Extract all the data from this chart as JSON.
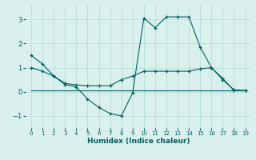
{
  "xlabel": "Humidex (Indice chaleur)",
  "bg_color": "#d9f0ed",
  "line_color": "#006060",
  "grid_color": "#b8ddd8",
  "xlim": [
    -0.5,
    19.5
  ],
  "ylim": [
    -1.5,
    3.6
  ],
  "yticks": [
    -1,
    0,
    1,
    2,
    3
  ],
  "xticks": [
    0,
    1,
    2,
    3,
    4,
    5,
    6,
    7,
    8,
    9,
    10,
    11,
    12,
    13,
    14,
    15,
    16,
    17,
    18,
    19
  ],
  "series1_x": [
    0,
    1,
    2,
    3,
    4,
    5,
    6,
    7,
    8,
    9,
    10,
    11,
    12,
    13,
    14,
    15,
    16,
    17,
    18,
    19
  ],
  "series1_y": [
    1.5,
    1.15,
    0.65,
    0.3,
    0.2,
    -0.3,
    -0.65,
    -0.9,
    -1.0,
    -0.05,
    3.05,
    2.65,
    3.1,
    3.1,
    3.1,
    1.85,
    1.0,
    0.5,
    0.08,
    0.05
  ],
  "series2_x": [
    0,
    1,
    2,
    3,
    4,
    5,
    6,
    7,
    8,
    9,
    10,
    11,
    12,
    13,
    14,
    15,
    16,
    17,
    18,
    19
  ],
  "series2_y": [
    1.0,
    0.85,
    0.65,
    0.35,
    0.28,
    0.25,
    0.25,
    0.25,
    0.5,
    0.65,
    0.85,
    0.85,
    0.85,
    0.85,
    0.85,
    0.95,
    1.0,
    0.55,
    0.05,
    0.05
  ],
  "series3_x": [
    0,
    1,
    2,
    3,
    4,
    5,
    6,
    7,
    8,
    9,
    10,
    11,
    12,
    13,
    14,
    15,
    16,
    17,
    18,
    19
  ],
  "series3_y": [
    0.05,
    0.05,
    0.05,
    0.05,
    0.05,
    0.05,
    0.05,
    0.05,
    0.05,
    0.05,
    0.05,
    0.05,
    0.05,
    0.05,
    0.05,
    0.05,
    0.05,
    0.05,
    0.05,
    0.05
  ]
}
